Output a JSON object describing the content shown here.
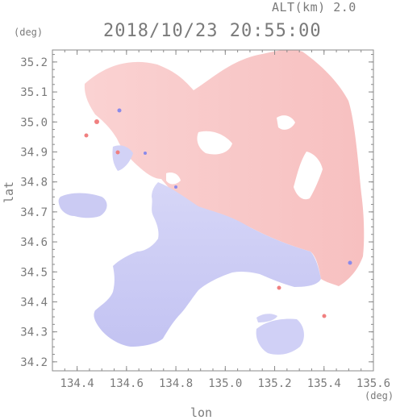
{
  "header": {
    "altitude": "ALT(km) 2.0",
    "datetime": "2018/10/23 20:55:00",
    "unit_left": "(deg)",
    "unit_right": "(deg)"
  },
  "axes": {
    "xlabel": "lon",
    "ylabel": "lat",
    "xlim": [
      134.3,
      135.6
    ],
    "ylim": [
      34.17,
      35.24
    ],
    "xticks": [
      "134.4",
      "134.6",
      "134.8",
      "135.0",
      "135.2",
      "135.4",
      "135.6"
    ],
    "xtick_values": [
      134.4,
      134.6,
      134.8,
      135.0,
      135.2,
      135.4,
      135.6
    ],
    "yticks": [
      "35.2",
      "35.1",
      "35.0",
      "34.9",
      "34.8",
      "34.7",
      "34.6",
      "34.5",
      "34.4",
      "34.3",
      "34.2"
    ],
    "ytick_values": [
      35.2,
      35.1,
      35.0,
      34.9,
      34.8,
      34.7,
      34.6,
      34.5,
      34.4,
      34.3,
      34.2
    ]
  },
  "colors": {
    "frame": "#8a8a8a",
    "text": "#7a7a7a",
    "approaching": "#c9c9f5",
    "receding": "#f8c6c6",
    "strong_receding": "#f07070",
    "strong_approaching": "#7a7ae8"
  }
}
